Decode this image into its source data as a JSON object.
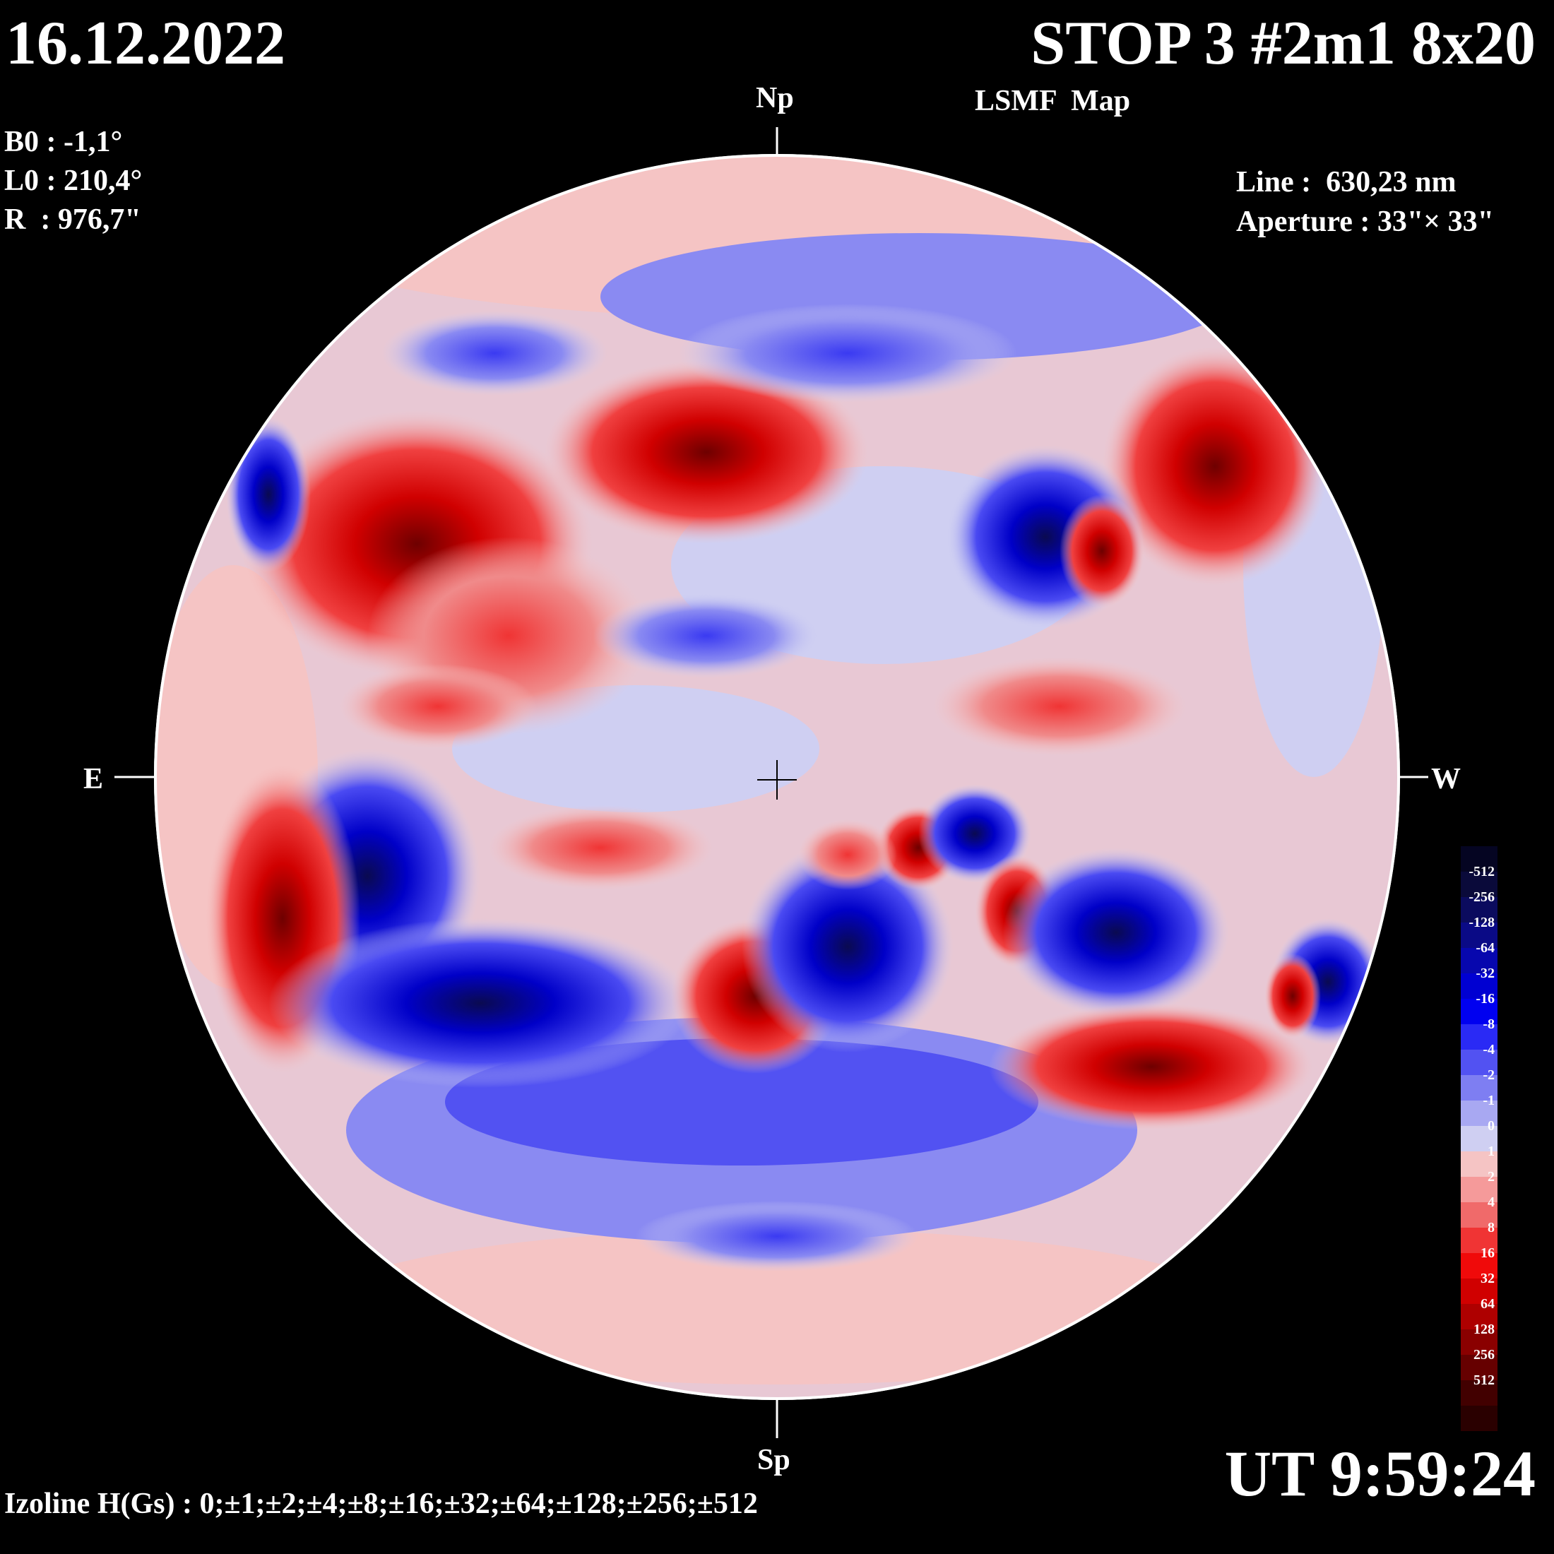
{
  "header": {
    "date": "16.12.2022",
    "title": "STOP 3 #2m1 8x20",
    "subtitle": "LSMF  Map"
  },
  "params": {
    "b0": "B0 : -1,1°",
    "l0": "L0 : 210,4°",
    "r": "R  : 976,7\"",
    "line": "Line :  630,23 nm",
    "aperture": "Aperture : 33\"× 33\""
  },
  "compass": {
    "north": "Np",
    "south": "Sp",
    "east": "E",
    "west": "W"
  },
  "footer": {
    "ut": "UT 9:59:24",
    "izoline": "Izoline H(Gs) : 0;±1;±2;±4;±8;±16;±32;±64;±128;±256;±512"
  },
  "colorbar": {
    "levels": [
      {
        "label": "-512",
        "color": "#0a0a3a"
      },
      {
        "label": "-256",
        "color": "#0b0b5e"
      },
      {
        "label": "-128",
        "color": "#0a0a86"
      },
      {
        "label": "-64",
        "color": "#0707ae"
      },
      {
        "label": "-32",
        "color": "#0000d2"
      },
      {
        "label": "-16",
        "color": "#0000f0"
      },
      {
        "label": "-8",
        "color": "#2a2af5"
      },
      {
        "label": "-4",
        "color": "#5252f2"
      },
      {
        "label": "-2",
        "color": "#7e7ef2"
      },
      {
        "label": "-1",
        "color": "#a8a8f2"
      },
      {
        "label": "0",
        "color": "#cfcff2"
      },
      {
        "label": "1",
        "color": "#f5c4c4"
      },
      {
        "label": "2",
        "color": "#f59a9a"
      },
      {
        "label": "4",
        "color": "#f06a6a"
      },
      {
        "label": "8",
        "color": "#f03434"
      },
      {
        "label": "16",
        "color": "#f00a0a"
      },
      {
        "label": "32",
        "color": "#d00000"
      },
      {
        "label": "64",
        "color": "#ae0000"
      },
      {
        "label": "128",
        "color": "#8a0000"
      },
      {
        "label": "256",
        "color": "#660000"
      },
      {
        "label": "512",
        "color": "#420000"
      }
    ],
    "top_color": "#050522",
    "bottom_color": "#2a0000"
  },
  "magnetic_regions": [
    {
      "polarity": "positive",
      "strength": 64
    },
    {
      "polarity": "negative",
      "strength": 128
    },
    {
      "polarity": "positive",
      "strength": 128
    },
    {
      "polarity": "negative",
      "strength": 256
    },
    {
      "polarity": "positive",
      "strength": 256
    },
    {
      "polarity": "negative",
      "strength": 64
    },
    {
      "polarity": "positive",
      "strength": 32
    },
    {
      "polarity": "negative",
      "strength": 32
    }
  ]
}
